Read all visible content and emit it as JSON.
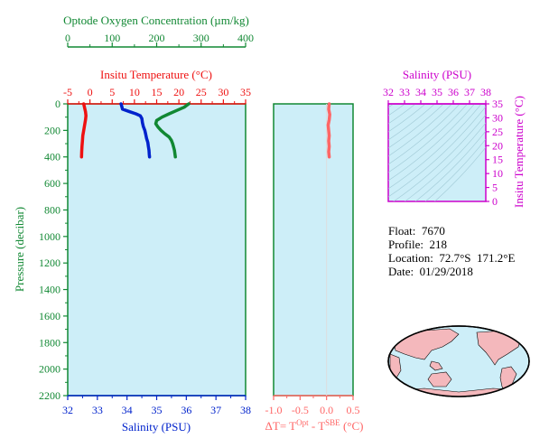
{
  "colors": {
    "oxygen": "#118833",
    "temperature": "#ee1111",
    "salinity": "#0022cc",
    "pressure_axis": "#118833",
    "delta": "#ff6666",
    "ts_axis": "#cc00cc",
    "panel_bg": "#cdeef8",
    "land": "#f4b8bc",
    "ocean": "#cdeef8"
  },
  "chart_data": [
    {
      "type": "line",
      "name": "profile",
      "y_axis": {
        "label": "Pressure (decibar)",
        "ylim": [
          0,
          2200
        ],
        "inverted": true,
        "ticks": [
          "0",
          "200",
          "400",
          "600",
          "800",
          "1000",
          "1200",
          "1400",
          "1600",
          "1800",
          "2000",
          "2200"
        ]
      },
      "axes": {
        "oxygen": {
          "title": "Optode Oxygen Concentration (µm/kg)",
          "xlim": [
            0,
            400
          ],
          "ticks": [
            "0",
            "100",
            "200",
            "300",
            "400"
          ]
        },
        "temperature": {
          "title": "Insitu Temperature (°C)",
          "xlim": [
            -5,
            35
          ],
          "ticks": [
            "-5",
            "0",
            "5",
            "10",
            "15",
            "20",
            "25",
            "30",
            "35"
          ]
        },
        "salinity": {
          "title": "Salinity (PSU)",
          "xlim": [
            32,
            38
          ],
          "ticks": [
            "32",
            "33",
            "34",
            "35",
            "36",
            "37",
            "38"
          ]
        }
      },
      "series": [
        {
          "name": "oxygen",
          "axis": "oxygen",
          "points": [
            [
              272,
              0
            ],
            [
              262,
              25
            ],
            [
              245,
              50
            ],
            [
              228,
              75
            ],
            [
              212,
              100
            ],
            [
              200,
              125
            ],
            [
              198,
              150
            ],
            [
              203,
              175
            ],
            [
              210,
              200
            ],
            [
              218,
              225
            ],
            [
              228,
              250
            ],
            [
              233,
              275
            ],
            [
              236,
              300
            ],
            [
              238,
              325
            ],
            [
              240,
              350
            ],
            [
              241,
              375
            ],
            [
              242,
              400
            ]
          ]
        },
        {
          "name": "temperature",
          "axis": "temperature",
          "points": [
            [
              -1.4,
              0
            ],
            [
              -1.2,
              30
            ],
            [
              -1.0,
              60
            ],
            [
              -0.9,
              90
            ],
            [
              -1.0,
              120
            ],
            [
              -1.2,
              160
            ],
            [
              -1.4,
              200
            ],
            [
              -1.6,
              240
            ],
            [
              -1.7,
              280
            ],
            [
              -1.8,
              320
            ],
            [
              -1.85,
              360
            ],
            [
              -1.9,
              400
            ]
          ]
        },
        {
          "name": "salinity",
          "axis": "salinity",
          "points": [
            [
              33.8,
              0
            ],
            [
              33.85,
              40
            ],
            [
              34.1,
              60
            ],
            [
              34.3,
              75
            ],
            [
              34.45,
              90
            ],
            [
              34.5,
              110
            ],
            [
              34.52,
              140
            ],
            [
              34.55,
              170
            ],
            [
              34.6,
              200
            ],
            [
              34.63,
              230
            ],
            [
              34.66,
              260
            ],
            [
              34.7,
              290
            ],
            [
              34.72,
              320
            ],
            [
              34.74,
              350
            ],
            [
              34.75,
              380
            ],
            [
              34.76,
              400
            ]
          ]
        }
      ]
    },
    {
      "type": "line",
      "name": "delta_t",
      "xlabel_prefix": "ΔT= T",
      "xlabel_sup1": "Opt",
      "xlabel_mid": " - T",
      "xlabel_sup2": "SBE",
      "xlabel_suffix": " (°C)",
      "xlim": [
        -1.0,
        0.5
      ],
      "ticks": [
        "-1.0",
        "-0.5",
        "0.0",
        "0.5"
      ],
      "series": [
        {
          "name": "delta_t",
          "points": [
            [
              0.05,
              0
            ],
            [
              0.04,
              40
            ],
            [
              0.06,
              80
            ],
            [
              0.05,
              120
            ],
            [
              0.03,
              160
            ],
            [
              0.04,
              200
            ],
            [
              0.05,
              240
            ],
            [
              0.04,
              280
            ],
            [
              0.05,
              320
            ],
            [
              0.04,
              360
            ],
            [
              0.05,
              400
            ]
          ]
        }
      ]
    },
    {
      "type": "scatter",
      "name": "ts_diagram",
      "x_axis": {
        "title": "Salinity (PSU)",
        "xlim": [
          32,
          38
        ],
        "ticks": [
          "32",
          "33",
          "34",
          "35",
          "36",
          "37",
          "38"
        ]
      },
      "y_axis": {
        "title": "Insitu Temperature (°C)",
        "ylim": [
          0,
          35
        ],
        "ticks": [
          "0",
          "5",
          "10",
          "15",
          "20",
          "25",
          "30",
          "35"
        ]
      },
      "series": []
    }
  ],
  "info": {
    "float_label": "Float:",
    "float_value": "7670",
    "profile_label": "Profile:",
    "profile_value": "218",
    "location_label": "Location:",
    "location_value": "72.7°S  171.2°E",
    "date_label": "Date:",
    "date_value": "01/29/2018"
  },
  "map": {
    "type": "world-map",
    "projection": "winkel-tripel"
  }
}
